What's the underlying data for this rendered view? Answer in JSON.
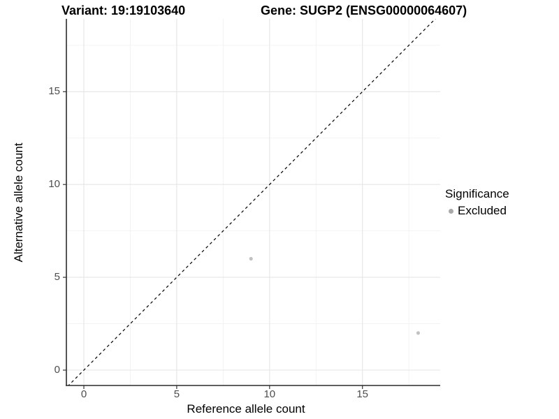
{
  "titles": {
    "variant": "Variant: 19:19103640",
    "gene": "Gene: SUGP2 (ENSG00000064607)"
  },
  "chart_data": {
    "type": "scatter",
    "title_left": "Variant: 19:19103640",
    "title_right": "Gene: SUGP2 (ENSG00000064607)",
    "xlabel": "Reference allele count",
    "ylabel": "Alternative allele count",
    "xlim": [
      -0.94,
      19.17
    ],
    "ylim": [
      -0.85,
      18.9
    ],
    "xticks": [
      0,
      5,
      10,
      15
    ],
    "yticks": [
      0,
      5,
      10,
      15
    ],
    "grid": true,
    "identity_line": {
      "slope": 1,
      "intercept": 0,
      "style": "dashed",
      "color": "#000000"
    },
    "series": [
      {
        "name": "Excluded",
        "color": "#c2c2c2",
        "points": [
          {
            "x": 9,
            "y": 6
          },
          {
            "x": 18,
            "y": 2
          }
        ]
      }
    ],
    "legend": {
      "title": "Significance",
      "position": "right",
      "items": [
        {
          "label": "Excluded",
          "color": "#a9a9a9"
        }
      ]
    }
  },
  "style_colors": {
    "grid_major": "#e5e5e5",
    "grid_minor": "#f0f0f0",
    "axis_line": "#2b2b2b",
    "tick_mark": "#333333",
    "tick_text": "#4d4d4d"
  }
}
